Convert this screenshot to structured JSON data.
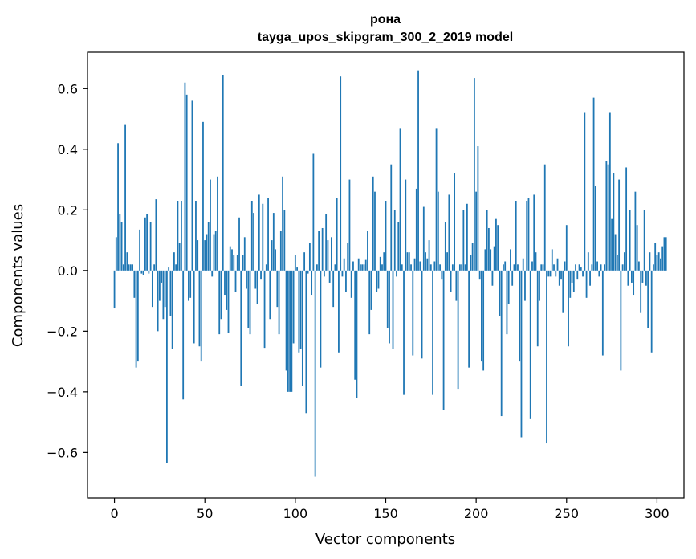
{
  "chart_data": {
    "type": "bar",
    "title": "рона",
    "subtitle": "tayga_upos_skipgram_300_2_2019 model",
    "xlabel": "Vector components",
    "ylabel": "Components values",
    "xlim": [
      -14.9,
      314.9
    ],
    "ylim": [
      -0.75,
      0.72
    ],
    "x_ticks": [
      0,
      50,
      100,
      150,
      200,
      250,
      300
    ],
    "x_tick_labels": [
      "0",
      "50",
      "100",
      "150",
      "200",
      "250",
      "300"
    ],
    "y_ticks": [
      -0.6,
      -0.4,
      -0.2,
      0.0,
      0.2,
      0.4,
      0.6
    ],
    "y_tick_labels": [
      "−0.6",
      "−0.4",
      "−0.2",
      "0.0",
      "0.2",
      "0.4",
      "0.6"
    ],
    "grid": false,
    "bar_color": "#1f77b4",
    "values": [
      -0.125,
      0.11,
      0.42,
      0.185,
      0.16,
      0.02,
      0.48,
      0.06,
      0.02,
      0.02,
      0.02,
      -0.09,
      -0.32,
      -0.3,
      0.135,
      -0.01,
      -0.015,
      0.175,
      0.185,
      -0.01,
      0.16,
      -0.12,
      0.02,
      0.235,
      -0.2,
      -0.1,
      -0.04,
      -0.16,
      -0.12,
      -0.635,
      0.01,
      -0.15,
      -0.26,
      0.06,
      0.02,
      0.23,
      0.09,
      0.23,
      -0.425,
      0.62,
      0.58,
      -0.1,
      -0.09,
      0.56,
      -0.24,
      0.23,
      0.1,
      -0.25,
      -0.3,
      0.49,
      0.1,
      0.12,
      0.16,
      0.3,
      -0.02,
      0.12,
      0.13,
      0.31,
      -0.21,
      -0.16,
      0.645,
      -0.08,
      -0.13,
      -0.205,
      0.08,
      0.07,
      0.05,
      -0.07,
      0.05,
      0.175,
      -0.38,
      0.05,
      0.11,
      -0.06,
      -0.19,
      -0.21,
      0.23,
      0.19,
      -0.06,
      -0.11,
      0.25,
      -0.03,
      0.22,
      -0.255,
      0.02,
      0.24,
      -0.16,
      0.1,
      0.19,
      0.07,
      -0.12,
      -0.21,
      0.13,
      0.31,
      0.2,
      -0.33,
      -0.4,
      -0.4,
      -0.4,
      -0.24,
      0.05,
      0.01,
      -0.27,
      -0.26,
      -0.38,
      0.06,
      -0.47,
      -0.01,
      0.09,
      -0.08,
      0.385,
      -0.68,
      0.02,
      0.13,
      -0.32,
      0.14,
      -0.02,
      0.185,
      0.1,
      -0.04,
      0.11,
      -0.12,
      0.02,
      0.24,
      -0.27,
      0.64,
      -0.02,
      0.04,
      -0.07,
      0.09,
      0.3,
      -0.09,
      0.03,
      -0.36,
      -0.42,
      0.04,
      0.02,
      0.02,
      0.02,
      0.035,
      0.13,
      -0.21,
      -0.13,
      0.31,
      0.26,
      -0.07,
      -0.06,
      0.045,
      0.02,
      0.06,
      0.23,
      -0.19,
      -0.24,
      0.35,
      -0.26,
      0.2,
      -0.02,
      0.16,
      0.47,
      0.02,
      -0.41,
      0.3,
      0.06,
      0.06,
      0.02,
      -0.28,
      0.04,
      0.27,
      0.66,
      0.03,
      -0.29,
      0.21,
      0.06,
      0.04,
      0.1,
      0.02,
      -0.41,
      0.03,
      0.47,
      0.26,
      0.02,
      -0.03,
      -0.46,
      0.16,
      0.06,
      0.25,
      -0.07,
      0.02,
      0.32,
      -0.1,
      -0.39,
      0.02,
      0.02,
      0.2,
      0.02,
      0.22,
      -0.32,
      0.05,
      0.09,
      0.635,
      0.26,
      0.41,
      -0.03,
      -0.3,
      -0.33,
      0.07,
      0.2,
      0.14,
      0.07,
      -0.05,
      0.08,
      0.17,
      0.15,
      -0.15,
      -0.48,
      0.02,
      0.03,
      -0.21,
      -0.11,
      0.07,
      -0.05,
      0.02,
      0.23,
      0.02,
      -0.3,
      -0.55,
      0.04,
      -0.1,
      0.23,
      0.24,
      -0.49,
      0.03,
      0.25,
      0.06,
      -0.25,
      -0.1,
      0.02,
      0.02,
      0.35,
      -0.57,
      -0.02,
      -0.02,
      0.07,
      0.02,
      -0.02,
      0.04,
      -0.05,
      -0.03,
      -0.14,
      0.03,
      0.15,
      -0.25,
      -0.09,
      -0.04,
      -0.07,
      0.02,
      -0.03,
      0.02,
      0.01,
      -0.02,
      0.52,
      -0.09,
      0.06,
      -0.05,
      0.02,
      0.57,
      0.28,
      0.03,
      -0.02,
      0.02,
      -0.28,
      0.02,
      0.36,
      0.35,
      0.52,
      0.17,
      0.32,
      0.12,
      0.05,
      0.3,
      -0.33,
      0.02,
      0.06,
      0.34,
      -0.05,
      0.2,
      -0.04,
      -0.08,
      0.26,
      0.15,
      0.03,
      -0.14,
      -0.04,
      0.2,
      -0.05,
      -0.19,
      0.06,
      -0.27,
      0.02,
      0.09,
      0.05,
      0.06,
      0.04,
      0.08,
      0.11,
      0.11
    ]
  }
}
